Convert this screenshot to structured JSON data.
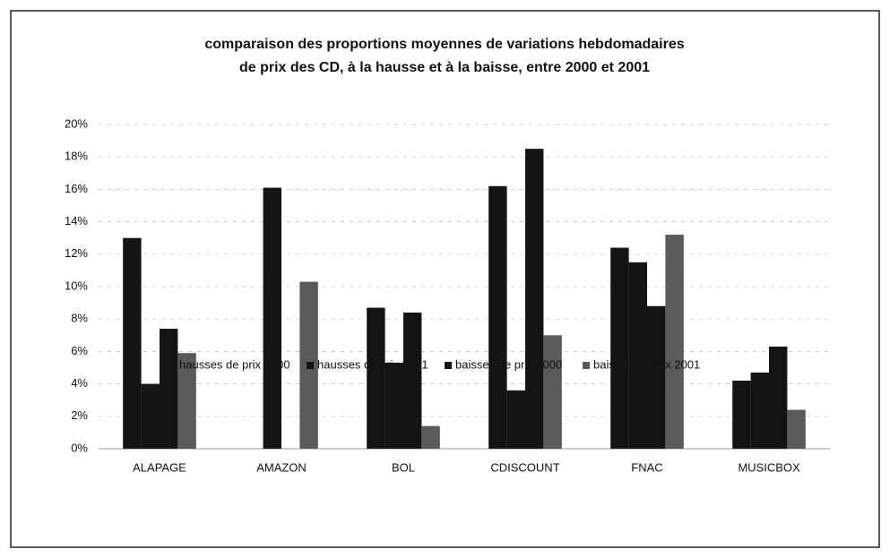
{
  "chart_data": {
    "type": "bar",
    "title": [
      "comparaison des proportions moyennes de variations hebdomadaires",
      "de prix des CD, à la hausse et à la baisse, entre 2000 et 2001"
    ],
    "categories": [
      "ALAPAGE",
      "AMAZON",
      "BOL",
      "CDISCOUNT",
      "FNAC",
      "MUSICBOX"
    ],
    "series": [
      {
        "name": "hausses de prix 2000",
        "color": "#141414",
        "values": [
          13,
          0,
          8.7,
          16.2,
          12.4,
          4.2
        ]
      },
      {
        "name": "hausses de prix 2001",
        "color": "#141414",
        "values": [
          4,
          16.1,
          5.3,
          3.6,
          11.5,
          4.7
        ]
      },
      {
        "name": "baisses de prix 2000",
        "color": "#141414",
        "values": [
          7.4,
          0,
          8.4,
          18.5,
          8.8,
          6.3
        ]
      },
      {
        "name": "baisses de prix 2001",
        "color": "#5a5a5a",
        "values": [
          5.9,
          10.3,
          1.4,
          7.0,
          13.2,
          2.4
        ]
      }
    ],
    "ylim": [
      0,
      20
    ],
    "yticks": [
      {
        "value": 0,
        "label": "0%"
      },
      {
        "value": 2,
        "label": "2%"
      },
      {
        "value": 4,
        "label": "4%"
      },
      {
        "value": 6,
        "label": "6%"
      },
      {
        "value": 8,
        "label": "8%"
      },
      {
        "value": 10,
        "label": "10%"
      },
      {
        "value": 12,
        "label": "12%"
      },
      {
        "value": 14,
        "label": "14%"
      },
      {
        "value": 16,
        "label": "16%"
      },
      {
        "value": 18,
        "label": "18%"
      },
      {
        "value": 20,
        "label": "20%"
      }
    ],
    "grid": true,
    "legend": "bottom"
  }
}
